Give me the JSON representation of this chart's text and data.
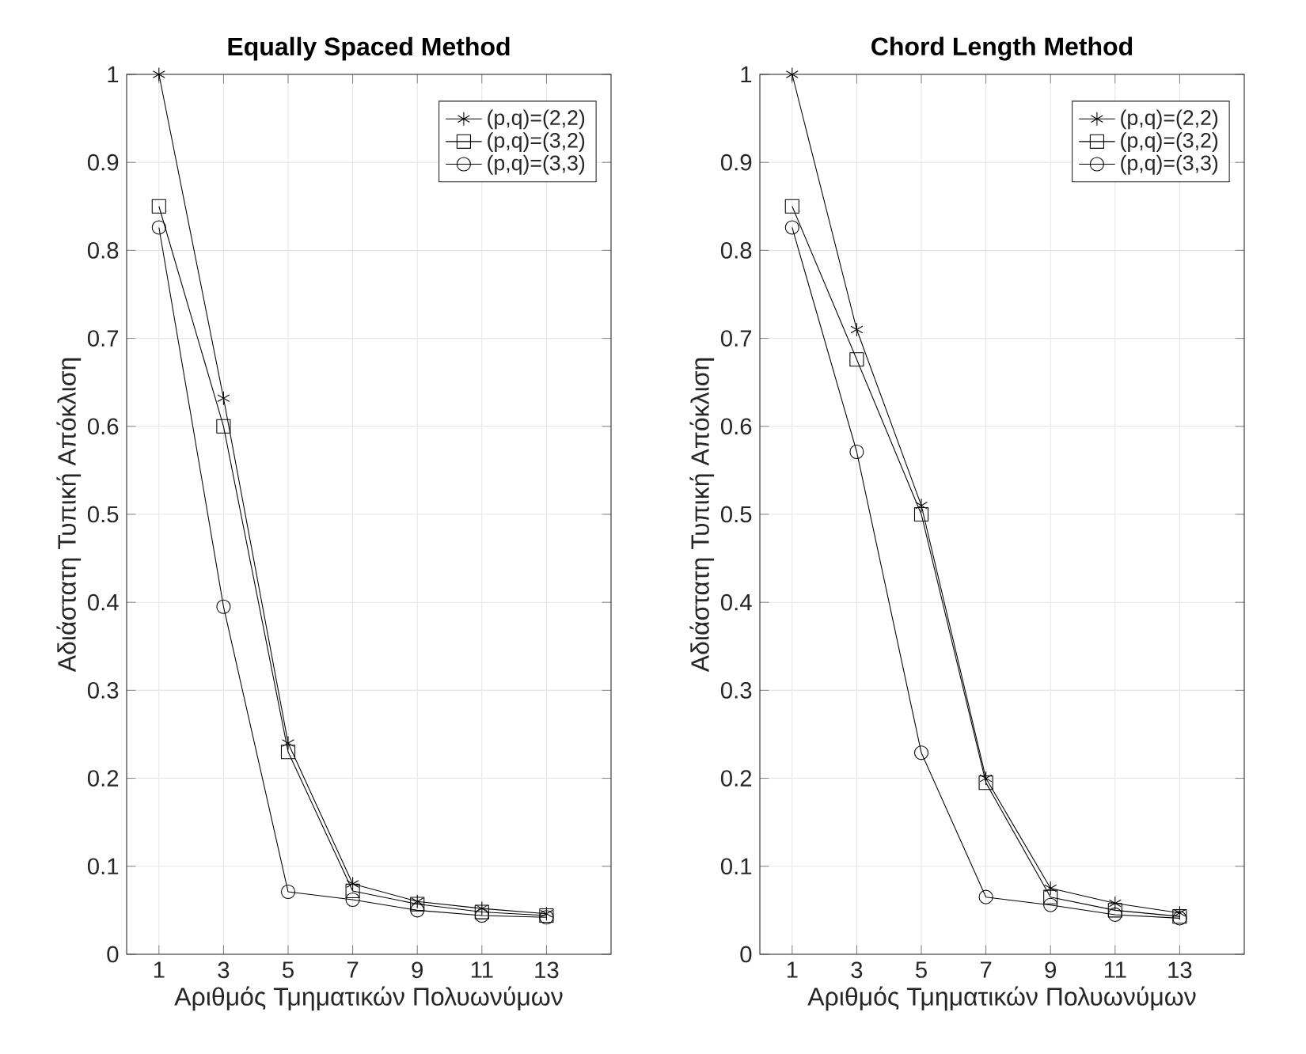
{
  "chart_data": [
    {
      "type": "line",
      "title": "Equally Spaced Method",
      "xlabel": "Αριθμός Τμηματικών Πολυωνύμων",
      "ylabel": "Αδιάστατη Τυπική Απόκλιση",
      "x": [
        1,
        3,
        5,
        7,
        9,
        11,
        13
      ],
      "xlim": [
        0,
        15
      ],
      "xticks": [
        1,
        3,
        5,
        7,
        9,
        11,
        13
      ],
      "ylim": [
        0,
        1
      ],
      "yticks": [
        0,
        0.1,
        0.2,
        0.3,
        0.4,
        0.5,
        0.6,
        0.7,
        0.8,
        0.9,
        1
      ],
      "grid": true,
      "legend": "top right",
      "line_style": "solid",
      "series": [
        {
          "name": "(p,q)=(2,2)",
          "color": "#000000",
          "marker": "cross",
          "values": [
            1,
            0.632,
            0.24,
            0.08,
            0.06,
            0.052,
            0.046
          ]
        },
        {
          "name": "(p,q)=(3,2)",
          "color": "#000000",
          "marker": "square",
          "values": [
            0.85,
            0.6,
            0.23,
            0.072,
            0.057,
            0.048,
            0.044
          ]
        },
        {
          "name": "(p,q)=(3,3)",
          "color": "#000000",
          "marker": "circle",
          "values": [
            0.826,
            0.395,
            0.071,
            0.062,
            0.05,
            0.044,
            0.042
          ]
        }
      ]
    },
    {
      "type": "line",
      "title": "Chord Length Method",
      "xlabel": "Αριθμός Τμηματικών Πολυωνύμων",
      "ylabel": "Αδιάστατη Τυπική Απόκλιση",
      "x": [
        1,
        3,
        5,
        7,
        9,
        11,
        13
      ],
      "xlim": [
        0,
        15
      ],
      "xticks": [
        1,
        3,
        5,
        7,
        9,
        11,
        13
      ],
      "ylim": [
        0,
        1
      ],
      "yticks": [
        0,
        0.1,
        0.2,
        0.3,
        0.4,
        0.5,
        0.6,
        0.7,
        0.8,
        0.9,
        1
      ],
      "grid": true,
      "legend": "top right",
      "line_style": "solid",
      "series": [
        {
          "name": "(p,q)=(2,2)",
          "color": "#000000",
          "marker": "cross",
          "values": [
            1,
            0.71,
            0.51,
            0.2,
            0.075,
            0.058,
            0.047
          ]
        },
        {
          "name": "(p,q)=(3,2)",
          "color": "#000000",
          "marker": "square",
          "values": [
            0.85,
            0.676,
            0.5,
            0.195,
            0.065,
            0.05,
            0.043
          ]
        },
        {
          "name": "(p,q)=(3,3)",
          "color": "#000000",
          "marker": "circle",
          "values": [
            0.826,
            0.571,
            0.229,
            0.065,
            0.056,
            0.045,
            0.041
          ]
        }
      ]
    }
  ]
}
